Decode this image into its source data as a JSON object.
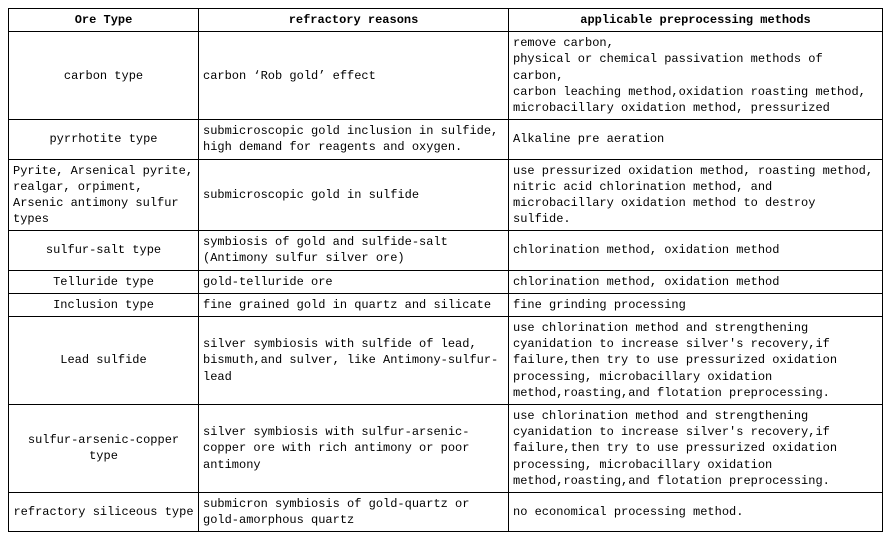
{
  "table": {
    "headers": {
      "col1": "Ore Type",
      "col2": "refractory reasons",
      "col3": "applicable preprocessing methods"
    },
    "rows": [
      {
        "type": "carbon type",
        "typeAlign": "center",
        "reason": "carbon ‘Rob gold’ effect",
        "method": "remove carbon,\nphysical or chemical passivation methods of carbon,\ncarbon leaching method,oxidation roasting method, microbacillary oxidation method, pressurized"
      },
      {
        "type": "pyrrhotite type",
        "typeAlign": "center",
        "reason": "submicroscopic gold inclusion in sulfide, high demand for reagents and oxygen.",
        "method": "Alkaline pre aeration"
      },
      {
        "type": "Pyrite, Arsenical pyrite, realgar, orpiment, Arsenic antimony sulfur types",
        "typeAlign": "left",
        "reason": "submicroscopic gold in sulfide",
        "method": "use pressurized oxidation method, roasting method, nitric acid chlorination method, and microbacillary oxidation method to destroy sulfide."
      },
      {
        "type": "sulfur-salt type",
        "typeAlign": "center",
        "reason": "symbiosis of gold and sulfide-salt (Antimony sulfur silver ore)",
        "method": "chlorination method, oxidation method"
      },
      {
        "type": "Telluride type",
        "typeAlign": "center",
        "reason": "gold-telluride ore",
        "method": "chlorination method, oxidation method"
      },
      {
        "type": "Inclusion type",
        "typeAlign": "center",
        "reason": "fine grained gold in quartz and silicate",
        "method": "fine grinding processing"
      },
      {
        "type": "Lead sulfide",
        "typeAlign": "center",
        "reason": "silver symbiosis with sulfide of lead, bismuth,and sulver, like Antimony-sulfur-lead",
        "method": "use chlorination method and strengthening cyanidation to increase silver's recovery,if failure,then try to use pressurized oxidation processing, microbacillary oxidation method,roasting,and flotation preprocessing."
      },
      {
        "type": "sulfur-arsenic-copper type",
        "typeAlign": "center",
        "reason": "silver symbiosis with sulfur-arsenic-copper ore with rich antimony or poor antimony",
        "method": "use chlorination method and strengthening cyanidation to increase silver's recovery,if failure,then try to use pressurized oxidation processing, microbacillary oxidation method,roasting,and flotation preprocessing."
      },
      {
        "type": "refractory siliceous type",
        "typeAlign": "center",
        "reason": "submicron symbiosis of gold-quartz or gold-amorphous quartz",
        "method": "no economical processing method."
      }
    ]
  }
}
